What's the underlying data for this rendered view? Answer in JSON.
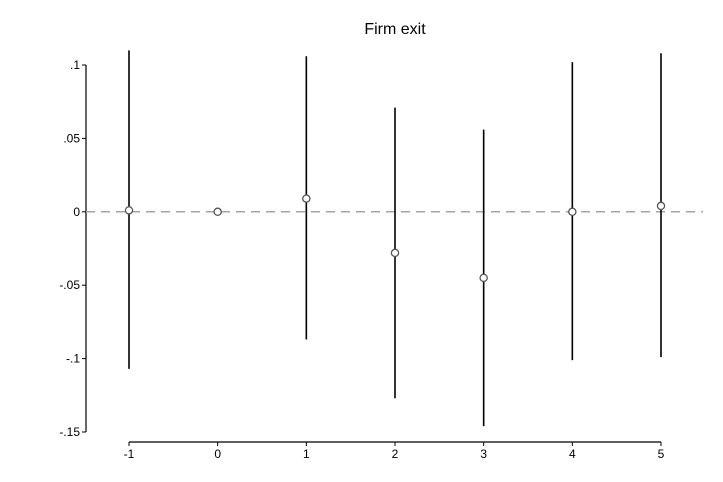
{
  "chart_data": {
    "type": "scatter",
    "title": "Firm exit",
    "xlabel": "",
    "ylabel": "",
    "x": [
      -1,
      0,
      1,
      2,
      3,
      4,
      5
    ],
    "series": [
      {
        "estimates": [
          0.001,
          0.0,
          0.009,
          -0.028,
          -0.045,
          0.0,
          0.004
        ],
        "ci_low": [
          -0.107,
          0.0,
          -0.087,
          -0.127,
          -0.146,
          -0.101,
          -0.099
        ],
        "ci_high": [
          0.11,
          0.0,
          0.106,
          0.071,
          0.056,
          0.102,
          0.108
        ]
      }
    ],
    "xticks": [
      "-1",
      "0",
      "1",
      "2",
      "3",
      "4",
      "5"
    ],
    "yticks": [
      {
        "value": 0.1,
        "label": ".1"
      },
      {
        "value": 0.05,
        "label": ".05"
      },
      {
        "value": 0,
        "label": "0"
      },
      {
        "value": -0.05,
        "label": "-.05"
      },
      {
        "value": -0.1,
        "label": "-.1"
      },
      {
        "value": -0.15,
        "label": "-.15"
      }
    ],
    "xlim": [
      -1,
      5
    ],
    "ylim": [
      -0.15,
      0.1
    ],
    "reference_line": {
      "y": 0,
      "style": "dashed"
    },
    "grid": false,
    "colors": {
      "marker": "#555555",
      "ci": "#000000",
      "reference": "#a6a6a6",
      "axis": "#000000"
    }
  }
}
